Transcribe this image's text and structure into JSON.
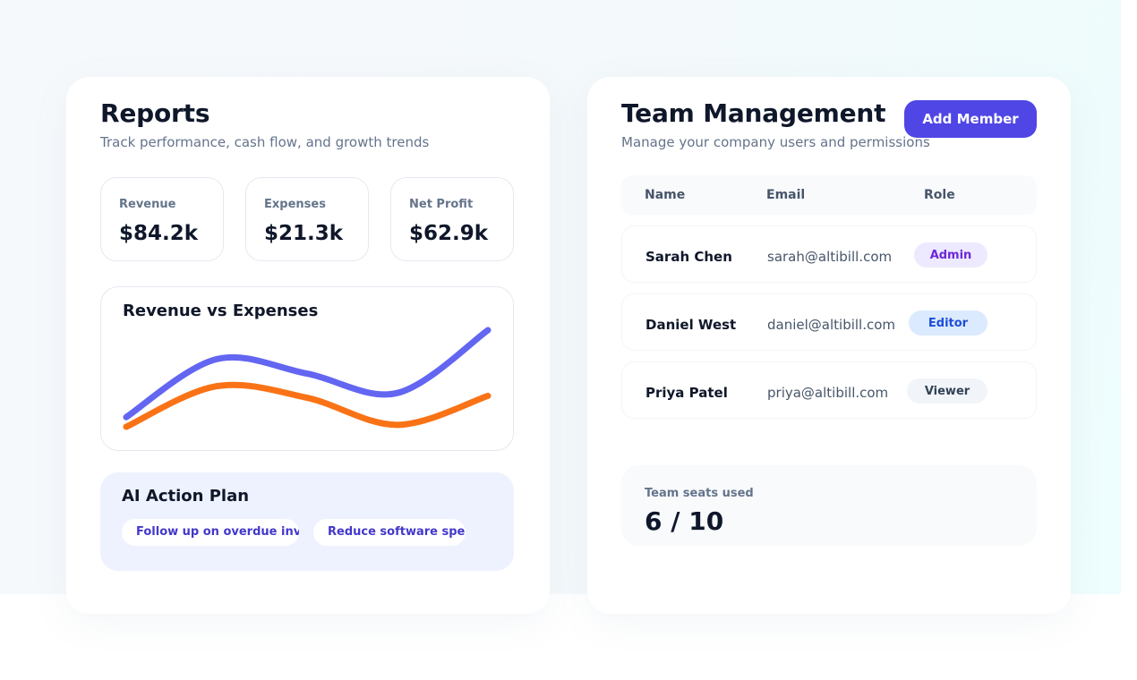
{
  "reports": {
    "title": "Reports",
    "subtitle": "Track performance, cash flow, and growth trends",
    "metrics": [
      {
        "label": "Revenue",
        "value": "$84.2k"
      },
      {
        "label": "Expenses",
        "value": "$21.3k"
      },
      {
        "label": "Net Profit",
        "value": "$62.9k"
      }
    ],
    "chart": {
      "title": "Revenue vs Expenses"
    },
    "action_plan": {
      "title": "AI Action Plan",
      "chips": [
        "Follow up on overdue invoices",
        "Reduce software spend"
      ]
    }
  },
  "chart_data": {
    "type": "line",
    "title": "Revenue vs Expenses",
    "series": [
      {
        "name": "",
        "color": "#6366f1",
        "values": [
          0.1,
          0.7,
          0.55,
          0.35,
          1.0
        ]
      },
      {
        "name": "",
        "color": "#f97316",
        "values": [
          0.0,
          0.42,
          0.3,
          0.02,
          0.32
        ]
      }
    ],
    "legend": "none",
    "grid": false
  },
  "team": {
    "title": "Team Management",
    "subtitle": "Manage your company users and permissions",
    "add_button": "Add Member",
    "columns": {
      "name": "Name",
      "email": "Email",
      "role": "Role"
    },
    "members": [
      {
        "name": "Sarah Chen",
        "email": "sarah@altibill.com",
        "role": "Admin",
        "badge_bg": "#ede9fe",
        "badge_fg": "#6d28d9"
      },
      {
        "name": "Daniel West",
        "email": "daniel@altibill.com",
        "role": "Editor",
        "badge_bg": "#dbeafe",
        "badge_fg": "#1d4ed8"
      },
      {
        "name": "Priya Patel",
        "email": "priya@altibill.com",
        "role": "Viewer",
        "badge_bg": "#f1f5f9",
        "badge_fg": "#334155"
      }
    ],
    "seats": {
      "label": "Team seats used",
      "value": "6 / 10"
    }
  }
}
